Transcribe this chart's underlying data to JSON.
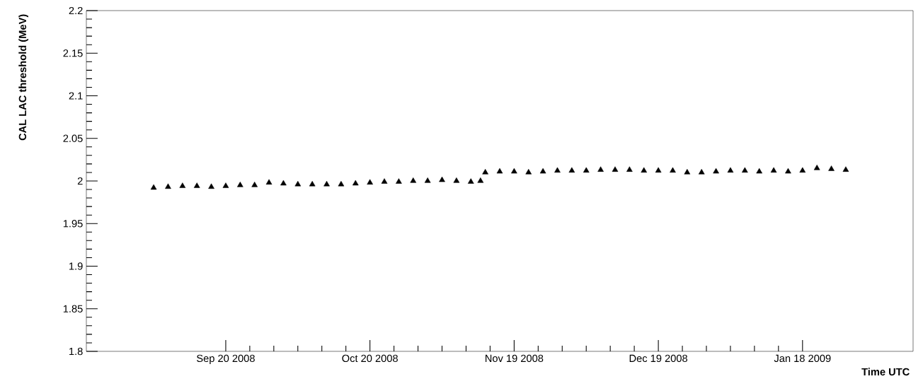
{
  "chart_data": {
    "type": "scatter",
    "xlabel": "Time UTC",
    "ylabel": "CAL LAC threshold (MeV)",
    "marker": "triangle",
    "xlim": [
      "2008-08-22",
      "2009-02-10"
    ],
    "xticks": [
      {
        "value": "2008-09-20",
        "label": "Sep 20 2008"
      },
      {
        "value": "2008-10-20",
        "label": "Oct 20 2008"
      },
      {
        "value": "2008-11-19",
        "label": "Nov 19 2008"
      },
      {
        "value": "2008-12-19",
        "label": "Dec 19 2008"
      },
      {
        "value": "2009-01-18",
        "label": "Jan 18 2009"
      }
    ],
    "ylim": [
      1.8,
      2.2
    ],
    "yticks": [
      1.8,
      1.85,
      1.9,
      1.95,
      2,
      2.05,
      2.1,
      2.15,
      2.2
    ],
    "series": [
      {
        "color": "#000000",
        "x": [
          "2008-09-05",
          "2008-09-08",
          "2008-09-11",
          "2008-09-14",
          "2008-09-17",
          "2008-09-20",
          "2008-09-23",
          "2008-09-26",
          "2008-09-29",
          "2008-10-02",
          "2008-10-05",
          "2008-10-08",
          "2008-10-11",
          "2008-10-14",
          "2008-10-17",
          "2008-10-20",
          "2008-10-23",
          "2008-10-26",
          "2008-10-29",
          "2008-11-01",
          "2008-11-04",
          "2008-11-07",
          "2008-11-10",
          "2008-11-12",
          "2008-11-13",
          "2008-11-16",
          "2008-11-19",
          "2008-11-22",
          "2008-11-25",
          "2008-11-28",
          "2008-12-01",
          "2008-12-04",
          "2008-12-07",
          "2008-12-10",
          "2008-12-13",
          "2008-12-16",
          "2008-12-19",
          "2008-12-22",
          "2008-12-25",
          "2008-12-28",
          "2008-12-31",
          "2009-01-03",
          "2009-01-06",
          "2009-01-09",
          "2009-01-12",
          "2009-01-15",
          "2009-01-18",
          "2009-01-21",
          "2009-01-24",
          "2009-01-27"
        ],
        "values": [
          1.992,
          1.993,
          1.994,
          1.994,
          1.993,
          1.994,
          1.995,
          1.995,
          1.998,
          1.997,
          1.996,
          1.996,
          1.996,
          1.996,
          1.997,
          1.998,
          1.999,
          1.999,
          2.0,
          2.0,
          2.001,
          2.0,
          1.999,
          2.0,
          2.01,
          2.011,
          2.011,
          2.01,
          2.011,
          2.012,
          2.012,
          2.012,
          2.013,
          2.013,
          2.013,
          2.012,
          2.012,
          2.012,
          2.01,
          2.01,
          2.011,
          2.012,
          2.012,
          2.011,
          2.012,
          2.011,
          2.012,
          2.015,
          2.014,
          2.013
        ]
      }
    ]
  }
}
